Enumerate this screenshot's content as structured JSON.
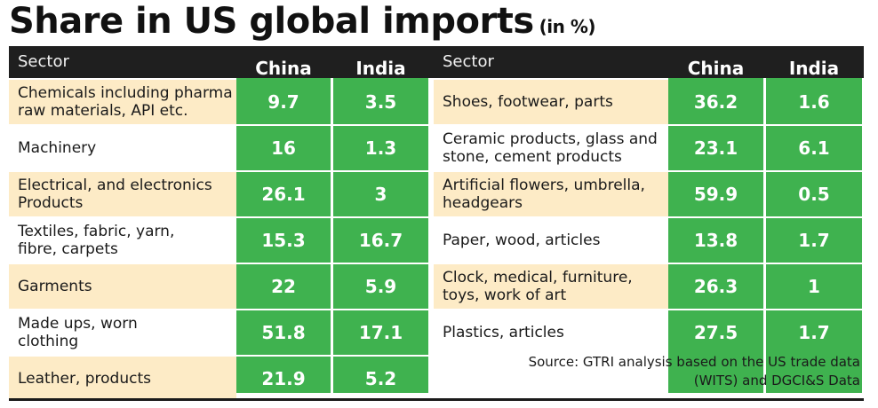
{
  "title": "Share in US global imports",
  "subtitle": "(in %)",
  "headers": {
    "sector": "Sector",
    "china": "China",
    "india": "India"
  },
  "source_line1": "Source: GTRI analysis based on the US trade data",
  "source_line2": "(WITS) and DGCI&S Data",
  "colors": {
    "green": "#3fb24f",
    "tan": "#fdebc6",
    "header": "#1f1f1f"
  },
  "chart_data": {
    "type": "table",
    "title": "Share in US global imports",
    "subtitle": "(in %)",
    "columns": [
      "Sector",
      "China",
      "India"
    ],
    "left_rows": [
      {
        "sector": [
          "Chemicals including pharma",
          "raw materials, API etc."
        ],
        "china": "9.7",
        "india": "3.5"
      },
      {
        "sector": [
          "Machinery"
        ],
        "china": "16",
        "india": "1.3"
      },
      {
        "sector": [
          "Electrical, and electronics",
          "Products"
        ],
        "china": "26.1",
        "india": "3"
      },
      {
        "sector": [
          "Textiles, fabric, yarn,",
          "fibre, carpets"
        ],
        "china": "15.3",
        "india": "16.7"
      },
      {
        "sector": [
          "Garments"
        ],
        "china": "22",
        "india": "5.9"
      },
      {
        "sector": [
          "Made ups, worn",
          "clothing"
        ],
        "china": "51.8",
        "india": "17.1"
      },
      {
        "sector": [
          "Leather, products"
        ],
        "china": "21.9",
        "india": "5.2"
      }
    ],
    "right_rows": [
      {
        "sector": [
          "Shoes, footwear, parts"
        ],
        "china": "36.2",
        "india": "1.6"
      },
      {
        "sector": [
          "Ceramic products, glass and",
          "stone, cement products"
        ],
        "china": "23.1",
        "india": "6.1"
      },
      {
        "sector": [
          "Artificial flowers, umbrella,",
          "headgears"
        ],
        "china": "59.9",
        "india": "0.5"
      },
      {
        "sector": [
          "Paper, wood, articles"
        ],
        "china": "13.8",
        "india": "1.7"
      },
      {
        "sector": [
          "Clock, medical, furniture,",
          "toys, work of art"
        ],
        "china": "26.3",
        "india": "1"
      },
      {
        "sector": [
          "Plastics, articles"
        ],
        "china": "27.5",
        "india": "1.7"
      }
    ]
  }
}
